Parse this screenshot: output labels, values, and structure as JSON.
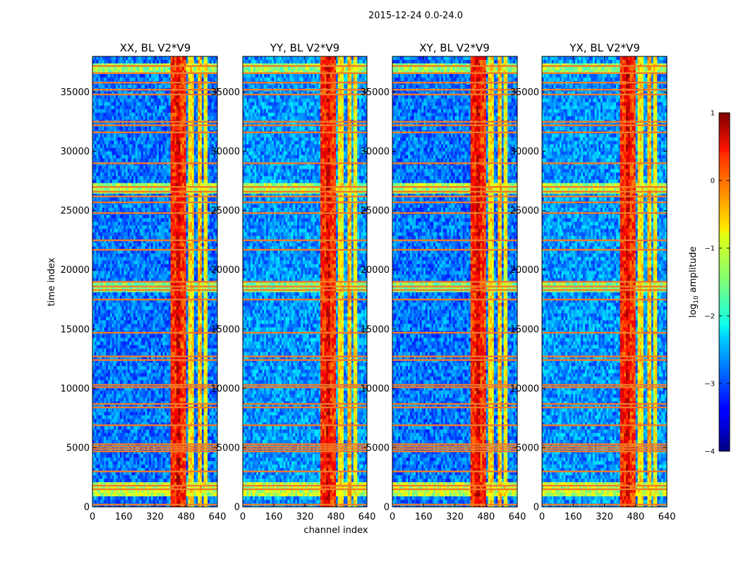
{
  "suptitle": "2015-12-24 0.0-24.0",
  "chart_data": {
    "type": "heatmap",
    "title": "2015-12-24 0.0-24.0",
    "xlabel": "channel index",
    "ylabel": "time index",
    "xlim": [
      0,
      640
    ],
    "ylim": [
      0,
      38000
    ],
    "xticks": [
      0,
      160,
      320,
      480,
      640
    ],
    "yticks": [
      0,
      5000,
      10000,
      15000,
      20000,
      25000,
      30000,
      35000
    ],
    "colorbar": {
      "label": "log10 amplitude",
      "label_base": "log",
      "label_sub": "10",
      "label_rest": " amplitude",
      "range": [
        -4,
        1
      ],
      "ticks": [
        1,
        0,
        -1,
        -2,
        -3,
        -4
      ],
      "tick_labels": [
        "1",
        "0",
        "−1",
        "−2",
        "−3",
        "−4"
      ],
      "colormap": "jet"
    },
    "panels": [
      {
        "title": "XX, BL V2*V9"
      },
      {
        "title": "YY, BL V2*V9"
      },
      {
        "title": "XY, BL V2*V9"
      },
      {
        "title": "YX, BL V2*V9"
      }
    ],
    "bright_channel_bands": [
      [
        405,
        430,
        0.2
      ],
      [
        430,
        455,
        0.5
      ],
      [
        455,
        480,
        0.1
      ],
      [
        495,
        525,
        -0.8
      ],
      [
        540,
        560,
        -0.6
      ],
      [
        570,
        590,
        -0.9
      ]
    ],
    "flagged_time_rows": [
      200,
      1500,
      1800,
      3000,
      4700,
      4900,
      5100,
      5300,
      6900,
      8400,
      8700,
      10100,
      10300,
      12400,
      12700,
      14700,
      17500,
      18300,
      18600,
      19000,
      21700,
      22500,
      24800,
      25700,
      26200,
      26600,
      27000,
      29000,
      31600,
      32200,
      32500,
      34800,
      35200,
      35800,
      36600,
      37200
    ],
    "horizontal_bright_bands": [
      [
        26300,
        27300,
        -1.3
      ],
      [
        18200,
        19000,
        -1.5
      ],
      [
        36500,
        37500,
        -1.4
      ],
      [
        800,
        2200,
        -1.2
      ]
    ]
  }
}
